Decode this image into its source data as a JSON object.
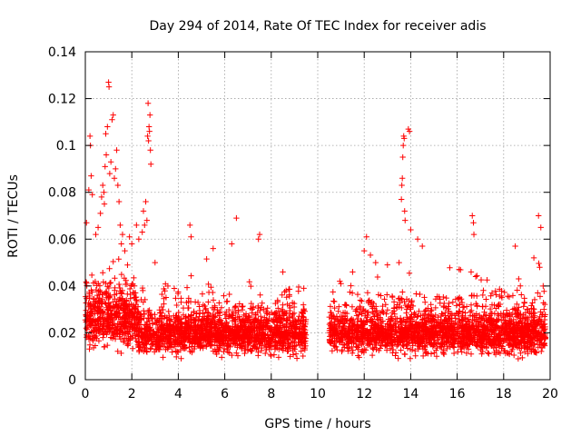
{
  "chart_data": {
    "type": "scatter",
    "title": "Day 294 of 2014, Rate Of TEC Index for receiver adis",
    "xlabel": "GPS time / hours",
    "ylabel": "ROTI / TECUs",
    "xlim": [
      0,
      20
    ],
    "ylim": [
      0,
      0.14
    ],
    "x_ticks": [
      0,
      2,
      4,
      6,
      8,
      10,
      12,
      14,
      16,
      18,
      20
    ],
    "y_ticks": [
      0,
      0.02,
      0.04,
      0.06,
      0.08,
      0.1,
      0.12,
      0.14
    ],
    "x_tick_labels": [
      "0",
      "2",
      "4",
      "6",
      "8",
      "10",
      "12",
      "14",
      "16",
      "18",
      "20"
    ],
    "y_tick_labels": [
      "0",
      "0.02",
      "0.04",
      "0.06",
      "0.08",
      "0.1",
      "0.12",
      "0.14"
    ],
    "grid": true,
    "marker": "+",
    "colors": {
      "points": "#ff0000",
      "grid": "#a0a0a0",
      "axes": "#000000"
    },
    "data_segments": [
      {
        "x_start": 0.0,
        "x_end": 9.5
      },
      {
        "x_start": 10.5,
        "x_end": 19.8
      }
    ],
    "notable_points": [
      {
        "x": 0.05,
        "y": 0.067
      },
      {
        "x": 0.15,
        "y": 0.081
      },
      {
        "x": 0.2,
        "y": 0.104
      },
      {
        "x": 0.22,
        "y": 0.1
      },
      {
        "x": 0.25,
        "y": 0.087
      },
      {
        "x": 0.3,
        "y": 0.079
      },
      {
        "x": 0.45,
        "y": 0.062
      },
      {
        "x": 0.55,
        "y": 0.065
      },
      {
        "x": 0.65,
        "y": 0.071
      },
      {
        "x": 0.7,
        "y": 0.078
      },
      {
        "x": 0.75,
        "y": 0.083
      },
      {
        "x": 0.8,
        "y": 0.08
      },
      {
        "x": 0.82,
        "y": 0.075
      },
      {
        "x": 0.85,
        "y": 0.091
      },
      {
        "x": 0.88,
        "y": 0.105
      },
      {
        "x": 0.9,
        "y": 0.096
      },
      {
        "x": 0.95,
        "y": 0.108
      },
      {
        "x": 1.0,
        "y": 0.127
      },
      {
        "x": 1.02,
        "y": 0.125
      },
      {
        "x": 1.05,
        "y": 0.088
      },
      {
        "x": 1.1,
        "y": 0.093
      },
      {
        "x": 1.15,
        "y": 0.111
      },
      {
        "x": 1.2,
        "y": 0.113
      },
      {
        "x": 1.25,
        "y": 0.086
      },
      {
        "x": 1.3,
        "y": 0.09
      },
      {
        "x": 1.35,
        "y": 0.098
      },
      {
        "x": 1.4,
        "y": 0.083
      },
      {
        "x": 1.45,
        "y": 0.076
      },
      {
        "x": 1.5,
        "y": 0.066
      },
      {
        "x": 1.55,
        "y": 0.058
      },
      {
        "x": 1.6,
        "y": 0.062
      },
      {
        "x": 1.7,
        "y": 0.055
      },
      {
        "x": 1.9,
        "y": 0.061
      },
      {
        "x": 2.0,
        "y": 0.058
      },
      {
        "x": 2.2,
        "y": 0.066
      },
      {
        "x": 2.3,
        "y": 0.06
      },
      {
        "x": 2.45,
        "y": 0.063
      },
      {
        "x": 2.5,
        "y": 0.072
      },
      {
        "x": 2.55,
        "y": 0.066
      },
      {
        "x": 2.6,
        "y": 0.076
      },
      {
        "x": 2.65,
        "y": 0.068
      },
      {
        "x": 2.68,
        "y": 0.104
      },
      {
        "x": 2.7,
        "y": 0.118
      },
      {
        "x": 2.72,
        "y": 0.102
      },
      {
        "x": 2.74,
        "y": 0.108
      },
      {
        "x": 2.76,
        "y": 0.106
      },
      {
        "x": 2.78,
        "y": 0.113
      },
      {
        "x": 2.8,
        "y": 0.098
      },
      {
        "x": 2.82,
        "y": 0.092
      },
      {
        "x": 3.0,
        "y": 0.05
      },
      {
        "x": 4.5,
        "y": 0.066
      },
      {
        "x": 4.55,
        "y": 0.061
      },
      {
        "x": 5.5,
        "y": 0.056
      },
      {
        "x": 6.5,
        "y": 0.069
      },
      {
        "x": 6.3,
        "y": 0.058
      },
      {
        "x": 7.5,
        "y": 0.062
      },
      {
        "x": 7.45,
        "y": 0.06
      },
      {
        "x": 8.5,
        "y": 0.046
      },
      {
        "x": 9.4,
        "y": 0.039
      },
      {
        "x": 11.0,
        "y": 0.041
      },
      {
        "x": 11.5,
        "y": 0.046
      },
      {
        "x": 12.0,
        "y": 0.055
      },
      {
        "x": 12.1,
        "y": 0.061
      },
      {
        "x": 13.0,
        "y": 0.049
      },
      {
        "x": 13.5,
        "y": 0.05
      },
      {
        "x": 13.6,
        "y": 0.077
      },
      {
        "x": 13.62,
        "y": 0.083
      },
      {
        "x": 13.64,
        "y": 0.086
      },
      {
        "x": 13.66,
        "y": 0.095
      },
      {
        "x": 13.68,
        "y": 0.1
      },
      {
        "x": 13.7,
        "y": 0.104
      },
      {
        "x": 13.72,
        "y": 0.103
      },
      {
        "x": 13.74,
        "y": 0.072
      },
      {
        "x": 13.76,
        "y": 0.068
      },
      {
        "x": 13.9,
        "y": 0.107
      },
      {
        "x": 13.95,
        "y": 0.106
      },
      {
        "x": 14.0,
        "y": 0.064
      },
      {
        "x": 14.3,
        "y": 0.06
      },
      {
        "x": 14.5,
        "y": 0.057
      },
      {
        "x": 16.65,
        "y": 0.07
      },
      {
        "x": 16.7,
        "y": 0.067
      },
      {
        "x": 16.72,
        "y": 0.062
      },
      {
        "x": 16.6,
        "y": 0.046
      },
      {
        "x": 16.8,
        "y": 0.044
      },
      {
        "x": 17.5,
        "y": 0.037
      },
      {
        "x": 18.5,
        "y": 0.057
      },
      {
        "x": 19.3,
        "y": 0.052
      },
      {
        "x": 19.5,
        "y": 0.07
      },
      {
        "x": 19.6,
        "y": 0.065
      },
      {
        "x": 19.55,
        "y": 0.048
      },
      {
        "x": 19.7,
        "y": 0.04
      }
    ]
  }
}
